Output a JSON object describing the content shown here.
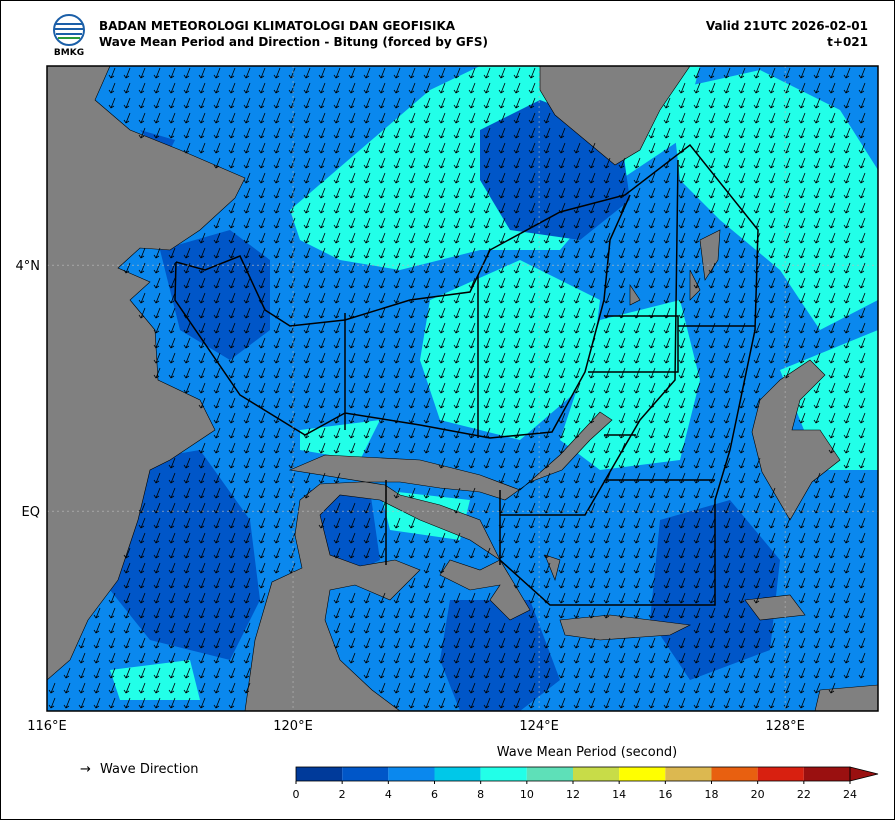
{
  "header": {
    "agency": "BADAN METEOROLOGI KLIMATOLOGI DAN GEOFISIKA",
    "subtitle": "Wave Mean Period and Direction - Bitung (forced by GFS)",
    "valid": "Valid 21UTC 2026-02-01",
    "lead": "t+021",
    "logo_text": "BMKG"
  },
  "map": {
    "lonlim": [
      116,
      129.51
    ],
    "latlim": [
      -3.25,
      7.24
    ],
    "lon_ticks": [
      {
        "value": 116,
        "label": "116°E"
      },
      {
        "value": 120,
        "label": "120°E"
      },
      {
        "value": 124,
        "label": "124°E"
      },
      {
        "value": 128,
        "label": "128°E"
      }
    ],
    "lat_ticks": [
      {
        "value": 4,
        "label": "4°N"
      },
      {
        "value": 0,
        "label": "EQ"
      }
    ]
  },
  "legend": {
    "direction_symbol": "→",
    "direction_label": "Wave Direction"
  },
  "colorbar": {
    "title": "Wave Mean Period (second)",
    "ticks": [
      0,
      2,
      4,
      6,
      8,
      10,
      12,
      14,
      16,
      18,
      20,
      22,
      24
    ],
    "colors": [
      "#003a9a",
      "#0056c8",
      "#0a88ee",
      "#00c8e8",
      "#22ffe8",
      "#5ee0b8",
      "#c8dc48",
      "#ffff00",
      "#dcb850",
      "#e86010",
      "#d82010",
      "#9a1010"
    ]
  }
}
